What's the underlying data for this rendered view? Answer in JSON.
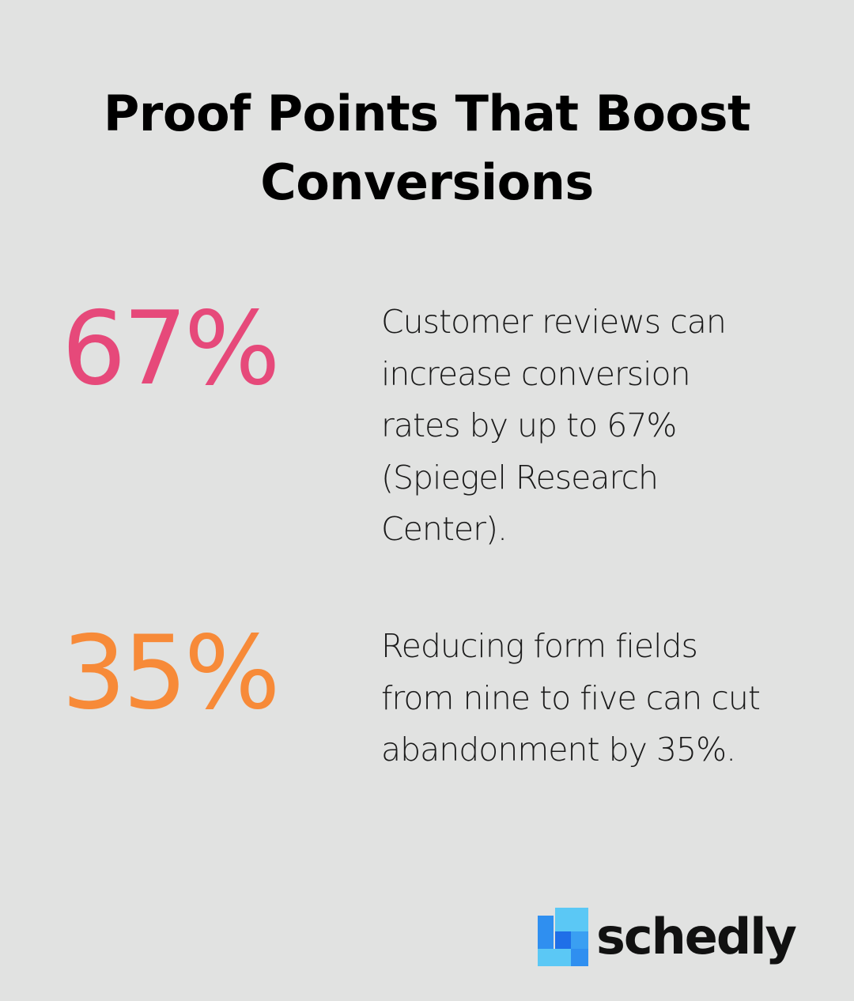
{
  "title": "Proof Points That Boost Conversions",
  "stats": [
    {
      "value": "67%",
      "color": "#e6497a",
      "description": "Customer reviews can increase conversion rates by up to 67% (Spiegel Research Center)."
    },
    {
      "value": "35%",
      "color": "#f78a38",
      "description": "Reducing form fields from nine to five can cut abandonment by 35%."
    }
  ],
  "brand": {
    "name": "schedly",
    "icon": "schedly-logo-mark",
    "colors": [
      "#5bc8f5",
      "#2f8ff0",
      "#1f6fe8"
    ]
  },
  "background_color": "#e1e2e1"
}
